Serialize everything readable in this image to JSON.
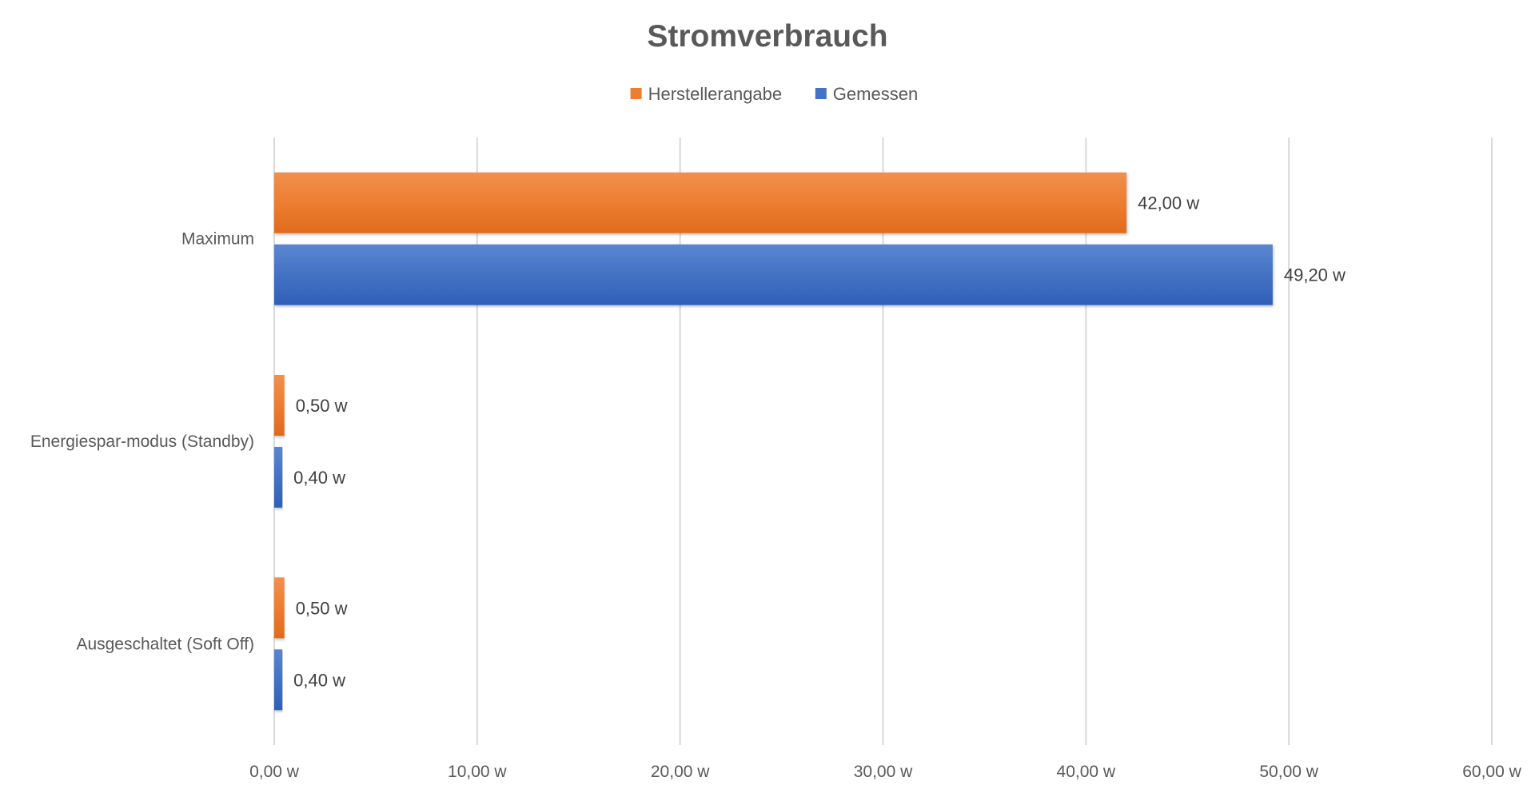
{
  "chart_data": {
    "type": "bar",
    "orientation": "horizontal",
    "title": "Stromverbrauch",
    "categories": [
      "Maximum",
      "Energiespar-modus (Standby)",
      "Ausgeschaltet (Soft Off)"
    ],
    "series": [
      {
        "name": "Herstellerangabe",
        "color": "#ED7D31",
        "values": [
          42.0,
          0.5,
          0.5
        ],
        "labels": [
          "42,00 w",
          "0,50 w",
          "0,50 w"
        ]
      },
      {
        "name": "Gemessen",
        "color": "#4472C4",
        "values": [
          49.2,
          0.4,
          0.4
        ],
        "labels": [
          "49,20 w",
          "0,40 w",
          "0,40 w"
        ]
      }
    ],
    "xlim": [
      0,
      60
    ],
    "xticks": [
      0,
      10,
      20,
      30,
      40,
      50,
      60
    ],
    "xtick_labels": [
      "0,00 w",
      "10,00 w",
      "20,00 w",
      "30,00 w",
      "40,00 w",
      "50,00 w",
      "60,00 w"
    ],
    "xlabel": "",
    "ylabel": "",
    "grid": "vertical",
    "legend_position": "top-center"
  }
}
